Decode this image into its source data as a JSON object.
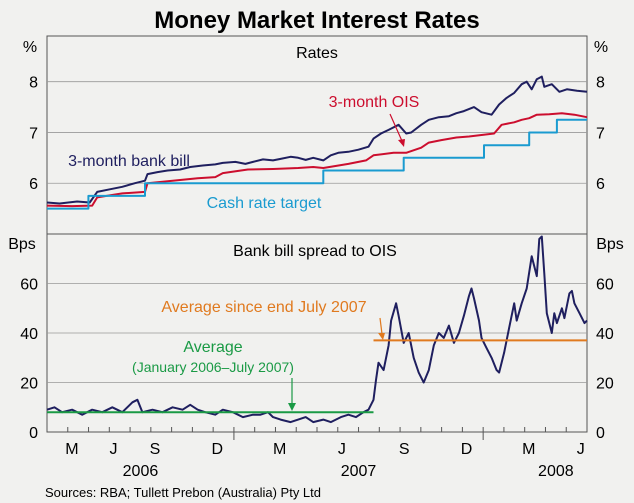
{
  "chart_data": {
    "type": "line",
    "title": "Money Market Interest Rates",
    "source": "Sources: RBA; Tullett Prebon (Australia) Pty Ltd",
    "months": [
      "M",
      "J",
      "S",
      "D",
      "M",
      "J",
      "S",
      "D",
      "M",
      "J"
    ],
    "years": [
      "2006",
      "2007",
      "2008"
    ],
    "x_range": [
      "2006-04",
      "2008-06"
    ],
    "panels": [
      {
        "id": "rates",
        "title": "Rates",
        "unit_left": "%",
        "unit_right": "%",
        "ylim": [
          5.0,
          8.9
        ],
        "yticks": [
          "6",
          "7",
          "8"
        ],
        "series": [
          {
            "name": "3-month bank bill",
            "color": "#1f1f5f",
            "points": [
              [
                0,
                5.62
              ],
              [
                0.5,
                5.6
              ],
              [
                1.2,
                5.64
              ],
              [
                1.7,
                5.62
              ],
              [
                2.0,
                5.83
              ],
              [
                2.5,
                5.88
              ],
              [
                3.0,
                5.93
              ],
              [
                3.5,
                6.0
              ],
              [
                3.9,
                6.05
              ],
              [
                4.0,
                6.18
              ],
              [
                4.4,
                6.22
              ],
              [
                4.8,
                6.25
              ],
              [
                5.3,
                6.27
              ],
              [
                5.7,
                6.32
              ],
              [
                6.2,
                6.35
              ],
              [
                6.7,
                6.37
              ],
              [
                7.0,
                6.4
              ],
              [
                7.5,
                6.42
              ],
              [
                7.9,
                6.38
              ],
              [
                8.2,
                6.42
              ],
              [
                8.6,
                6.47
              ],
              [
                9.0,
                6.45
              ],
              [
                9.3,
                6.48
              ],
              [
                9.7,
                6.52
              ],
              [
                10.0,
                6.5
              ],
              [
                10.3,
                6.46
              ],
              [
                10.6,
                6.5
              ],
              [
                11.0,
                6.45
              ],
              [
                11.3,
                6.55
              ],
              [
                11.6,
                6.6
              ],
              [
                12.0,
                6.62
              ],
              [
                12.4,
                6.66
              ],
              [
                12.8,
                6.72
              ],
              [
                13.0,
                6.88
              ],
              [
                13.3,
                6.98
              ],
              [
                13.6,
                7.05
              ],
              [
                14.0,
                7.15
              ],
              [
                14.3,
                6.98
              ],
              [
                14.5,
                7.0
              ],
              [
                14.9,
                7.15
              ],
              [
                15.2,
                7.25
              ],
              [
                15.6,
                7.3
              ],
              [
                16.0,
                7.32
              ],
              [
                16.3,
                7.38
              ],
              [
                16.6,
                7.42
              ],
              [
                17.0,
                7.5
              ],
              [
                17.3,
                7.4
              ],
              [
                17.7,
                7.35
              ],
              [
                18.0,
                7.55
              ],
              [
                18.3,
                7.68
              ],
              [
                18.6,
                7.78
              ],
              [
                18.9,
                7.95
              ],
              [
                19.1,
                8.0
              ],
              [
                19.3,
                7.85
              ],
              [
                19.5,
                8.05
              ],
              [
                19.7,
                8.1
              ],
              [
                19.8,
                7.9
              ],
              [
                20.1,
                7.95
              ],
              [
                20.4,
                7.8
              ],
              [
                20.7,
                7.85
              ],
              [
                21.1,
                7.82
              ],
              [
                21.5,
                7.8
              ]
            ]
          },
          {
            "name": "3-month OIS",
            "color": "#cc0e2e",
            "points": [
              [
                0,
                5.56
              ],
              [
                1.0,
                5.55
              ],
              [
                1.8,
                5.56
              ],
              [
                2.0,
                5.72
              ],
              [
                3.0,
                5.8
              ],
              [
                3.9,
                5.83
              ],
              [
                4.0,
                6.0
              ],
              [
                5.0,
                6.05
              ],
              [
                6.0,
                6.1
              ],
              [
                6.7,
                6.12
              ],
              [
                7.0,
                6.2
              ],
              [
                8.0,
                6.27
              ],
              [
                9.0,
                6.28
              ],
              [
                10.0,
                6.3
              ],
              [
                10.6,
                6.32
              ],
              [
                11.0,
                6.3
              ],
              [
                12.0,
                6.38
              ],
              [
                12.7,
                6.45
              ],
              [
                13.0,
                6.55
              ],
              [
                13.8,
                6.6
              ],
              [
                14.3,
                6.6
              ],
              [
                14.9,
                6.7
              ],
              [
                15.2,
                6.8
              ],
              [
                15.7,
                6.85
              ],
              [
                16.3,
                6.9
              ],
              [
                16.8,
                6.92
              ],
              [
                17.3,
                6.95
              ],
              [
                17.8,
                6.98
              ],
              [
                18.1,
                7.15
              ],
              [
                18.6,
                7.2
              ],
              [
                18.9,
                7.25
              ],
              [
                19.2,
                7.28
              ],
              [
                19.5,
                7.35
              ],
              [
                20.0,
                7.36
              ],
              [
                20.5,
                7.38
              ],
              [
                21.0,
                7.35
              ],
              [
                21.5,
                7.3
              ]
            ]
          },
          {
            "name": "Cash rate target",
            "color": "#1a9bd0",
            "step": true,
            "points": [
              [
                0,
                5.5
              ],
              [
                1.65,
                5.5
              ],
              [
                1.65,
                5.75
              ],
              [
                3.9,
                5.75
              ],
              [
                3.9,
                6.0
              ],
              [
                11.0,
                6.0
              ],
              [
                11.0,
                6.25
              ],
              [
                14.2,
                6.25
              ],
              [
                14.2,
                6.5
              ],
              [
                17.4,
                6.5
              ],
              [
                17.4,
                6.75
              ],
              [
                19.2,
                6.75
              ],
              [
                19.2,
                7.0
              ],
              [
                20.3,
                7.0
              ],
              [
                20.3,
                7.25
              ],
              [
                21.5,
                7.25
              ]
            ]
          }
        ],
        "annotations": [
          "3-month bank bill",
          "3-month OIS",
          "Cash rate target"
        ]
      },
      {
        "id": "spread",
        "title": "Bank bill spread to OIS",
        "unit_left": "Bps",
        "unit_right": "Bps",
        "ylim": [
          0,
          80
        ],
        "yticks": [
          "0",
          "20",
          "40",
          "60"
        ],
        "series": [
          {
            "name": "Bank bill spread to OIS",
            "color": "#1f1f5f",
            "points": [
              [
                0,
                9
              ],
              [
                0.3,
                10
              ],
              [
                0.6,
                8
              ],
              [
                1.0,
                9
              ],
              [
                1.4,
                7
              ],
              [
                1.8,
                9
              ],
              [
                2.2,
                8
              ],
              [
                2.6,
                10
              ],
              [
                3.0,
                8
              ],
              [
                3.4,
                12
              ],
              [
                3.6,
                13
              ],
              [
                3.8,
                8
              ],
              [
                4.2,
                9
              ],
              [
                4.6,
                8
              ],
              [
                5.0,
                10
              ],
              [
                5.4,
                9
              ],
              [
                5.7,
                11
              ],
              [
                6.0,
                9
              ],
              [
                6.3,
                8
              ],
              [
                6.7,
                7
              ],
              [
                7.0,
                9
              ],
              [
                7.4,
                8
              ],
              [
                7.8,
                6
              ],
              [
                8.2,
                7
              ],
              [
                8.5,
                7
              ],
              [
                8.8,
                8
              ],
              [
                9.0,
                6
              ],
              [
                9.3,
                5
              ],
              [
                9.7,
                4
              ],
              [
                10.0,
                5
              ],
              [
                10.3,
                6
              ],
              [
                10.6,
                4
              ],
              [
                11.0,
                5
              ],
              [
                11.3,
                4
              ],
              [
                11.7,
                6
              ],
              [
                12.0,
                7
              ],
              [
                12.3,
                6
              ],
              [
                12.6,
                8
              ],
              [
                12.8,
                9
              ],
              [
                13.0,
                13
              ],
              [
                13.1,
                21
              ],
              [
                13.2,
                28
              ],
              [
                13.4,
                25
              ],
              [
                13.6,
                35
              ],
              [
                13.7,
                45
              ],
              [
                13.9,
                52
              ],
              [
                14.0,
                47
              ],
              [
                14.2,
                36
              ],
              [
                14.4,
                40
              ],
              [
                14.6,
                30
              ],
              [
                14.8,
                24
              ],
              [
                15.0,
                20
              ],
              [
                15.2,
                25
              ],
              [
                15.4,
                35
              ],
              [
                15.6,
                40
              ],
              [
                15.8,
                38
              ],
              [
                16.0,
                43
              ],
              [
                16.2,
                36
              ],
              [
                16.4,
                40
              ],
              [
                16.6,
                47
              ],
              [
                16.8,
                55
              ],
              [
                16.9,
                58
              ],
              [
                17.0,
                54
              ],
              [
                17.2,
                45
              ],
              [
                17.3,
                38
              ],
              [
                17.5,
                34
              ],
              [
                17.7,
                30
              ],
              [
                17.9,
                25
              ],
              [
                18.0,
                24
              ],
              [
                18.2,
                32
              ],
              [
                18.4,
                42
              ],
              [
                18.6,
                52
              ],
              [
                18.7,
                45
              ],
              [
                18.9,
                52
              ],
              [
                19.1,
                58
              ],
              [
                19.3,
                71
              ],
              [
                19.5,
                63
              ],
              [
                19.6,
                78
              ],
              [
                19.7,
                79
              ],
              [
                19.8,
                64
              ],
              [
                19.9,
                48
              ],
              [
                20.1,
                40
              ],
              [
                20.2,
                48
              ],
              [
                20.3,
                44
              ],
              [
                20.5,
                50
              ],
              [
                20.6,
                46
              ],
              [
                20.8,
                56
              ],
              [
                20.9,
                57
              ],
              [
                21.0,
                52
              ],
              [
                21.2,
                48
              ],
              [
                21.4,
                44
              ],
              [
                21.5,
                45
              ]
            ]
          },
          {
            "name": "Average (January 2006–July 2007)",
            "color": "#1a9a45",
            "points": [
              [
                0,
                8
              ],
              [
                13.0,
                8
              ]
            ]
          },
          {
            "name": "Average since end July 2007",
            "color": "#e07a1f",
            "points": [
              [
                13.0,
                37
              ],
              [
                21.5,
                37
              ]
            ]
          }
        ],
        "annotations": [
          "Average since end July 2007",
          "Average",
          "(January 2006–July 2007)"
        ]
      }
    ]
  }
}
